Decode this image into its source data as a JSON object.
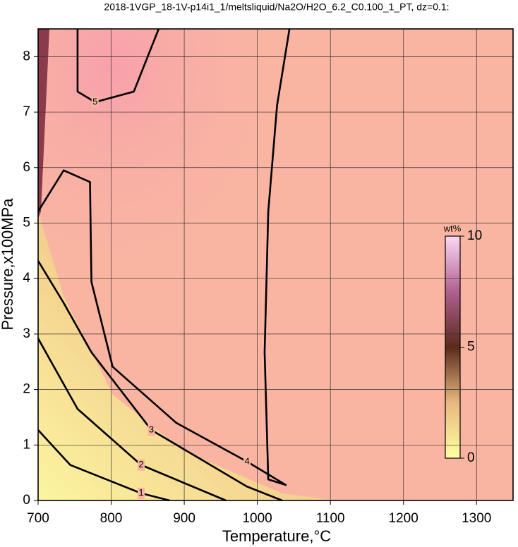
{
  "chart_data": {
    "type": "contour",
    "title": "2018-1VGP_18-1V-p14i1_1/meltsliquid/Na2O/H2O_6.2_C0.100_1_PT, dz=0.1:",
    "x_label": "Temperature,°C",
    "y_label": "Pressure,x100MPa",
    "xlim": [
      700,
      1350
    ],
    "ylim": [
      0,
      8.5
    ],
    "xticks": [
      700,
      800,
      900,
      1000,
      1100,
      1200,
      1300
    ],
    "yticks": [
      0,
      1,
      2,
      3,
      4,
      5,
      6,
      7,
      8
    ],
    "grid": true,
    "color": "#000000",
    "contours": [
      {
        "level": 1,
        "x": [
          700,
          744,
          841,
          880
        ],
        "y": [
          1.27,
          0.64,
          0.13,
          0
        ]
      },
      {
        "level": 2,
        "x": [
          700,
          754,
          841,
          957
        ],
        "y": [
          2.92,
          1.65,
          0.64,
          0
        ]
      },
      {
        "level": 3,
        "x": [
          700,
          735,
          773,
          855,
          986,
          1034
        ],
        "y": [
          4.32,
          3.56,
          2.67,
          1.27,
          0.25,
          0
        ]
      },
      {
        "level": 4,
        "x": [
          700,
          735,
          771,
          773,
          802,
          889,
          986,
          1039,
          1015,
          1010,
          1015,
          1027,
          1044
        ],
        "y": [
          5.21,
          5.95,
          5.74,
          3.94,
          2.41,
          1.4,
          0.7,
          0.28,
          0.38,
          2.67,
          5.21,
          7.12,
          8.5
        ]
      },
      {
        "level": 5,
        "x": [
          754,
          754,
          778,
          831,
          865
        ],
        "y": [
          8.5,
          7.37,
          7.18,
          7.37,
          8.5
        ]
      }
    ],
    "colorbar": {
      "label": "wt%",
      "lim": [
        0,
        10
      ],
      "ticks": [
        0,
        5,
        10
      ]
    }
  }
}
